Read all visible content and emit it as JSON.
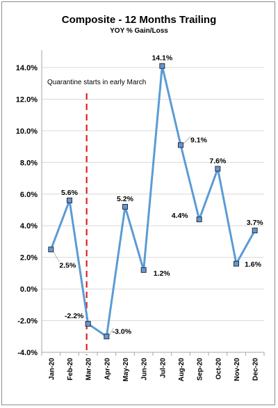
{
  "chart_data": {
    "type": "line",
    "title": "Composite - 12 Months Trailing",
    "subtitle": "YOY % Gain/Loss",
    "xlabel": "",
    "ylabel": "",
    "categories": [
      "Jan-20",
      "Feb-20",
      "Mar-20",
      "Apr-20",
      "May-20",
      "Jun-20",
      "Jul-20",
      "Aug-20",
      "Sep-20",
      "Oct-20",
      "Nov-20",
      "Dec-20"
    ],
    "series": [
      {
        "name": "",
        "values": [
          2.5,
          5.6,
          -2.2,
          -3.0,
          5.2,
          1.2,
          14.1,
          9.1,
          4.4,
          7.6,
          1.6,
          3.7
        ],
        "data_labels": [
          "2.5%",
          "5.6%",
          "-2.2%",
          "-3.0%",
          "5.2%",
          "1.2%",
          "14.1%",
          "9.1%",
          "4.4%",
          "7.6%",
          "1.6%",
          "3.7%"
        ]
      }
    ],
    "ylim": [
      -4.0,
      15.0
    ],
    "yticks": [
      -4.0,
      -2.0,
      0.0,
      2.0,
      4.0,
      6.0,
      8.0,
      10.0,
      12.0,
      14.0
    ],
    "ytick_labels": [
      "-4.0%",
      "-2.0%",
      "0.0%",
      "2.0%",
      "4.0%",
      "6.0%",
      "8.0%",
      "10.0%",
      "12.0%",
      "14.0%"
    ],
    "grid": true,
    "legend": "none",
    "annotation": {
      "text": "Quarantine starts in early March",
      "at_category": "Mar-20",
      "line_style": "dashed vertical"
    },
    "colors": {
      "line": "#5b9bd5",
      "marker_fill": "#6e95c6",
      "marker_border": "#1f2f4a",
      "annotation_line": "#e0201f",
      "grid": "#d9d9d9"
    }
  }
}
